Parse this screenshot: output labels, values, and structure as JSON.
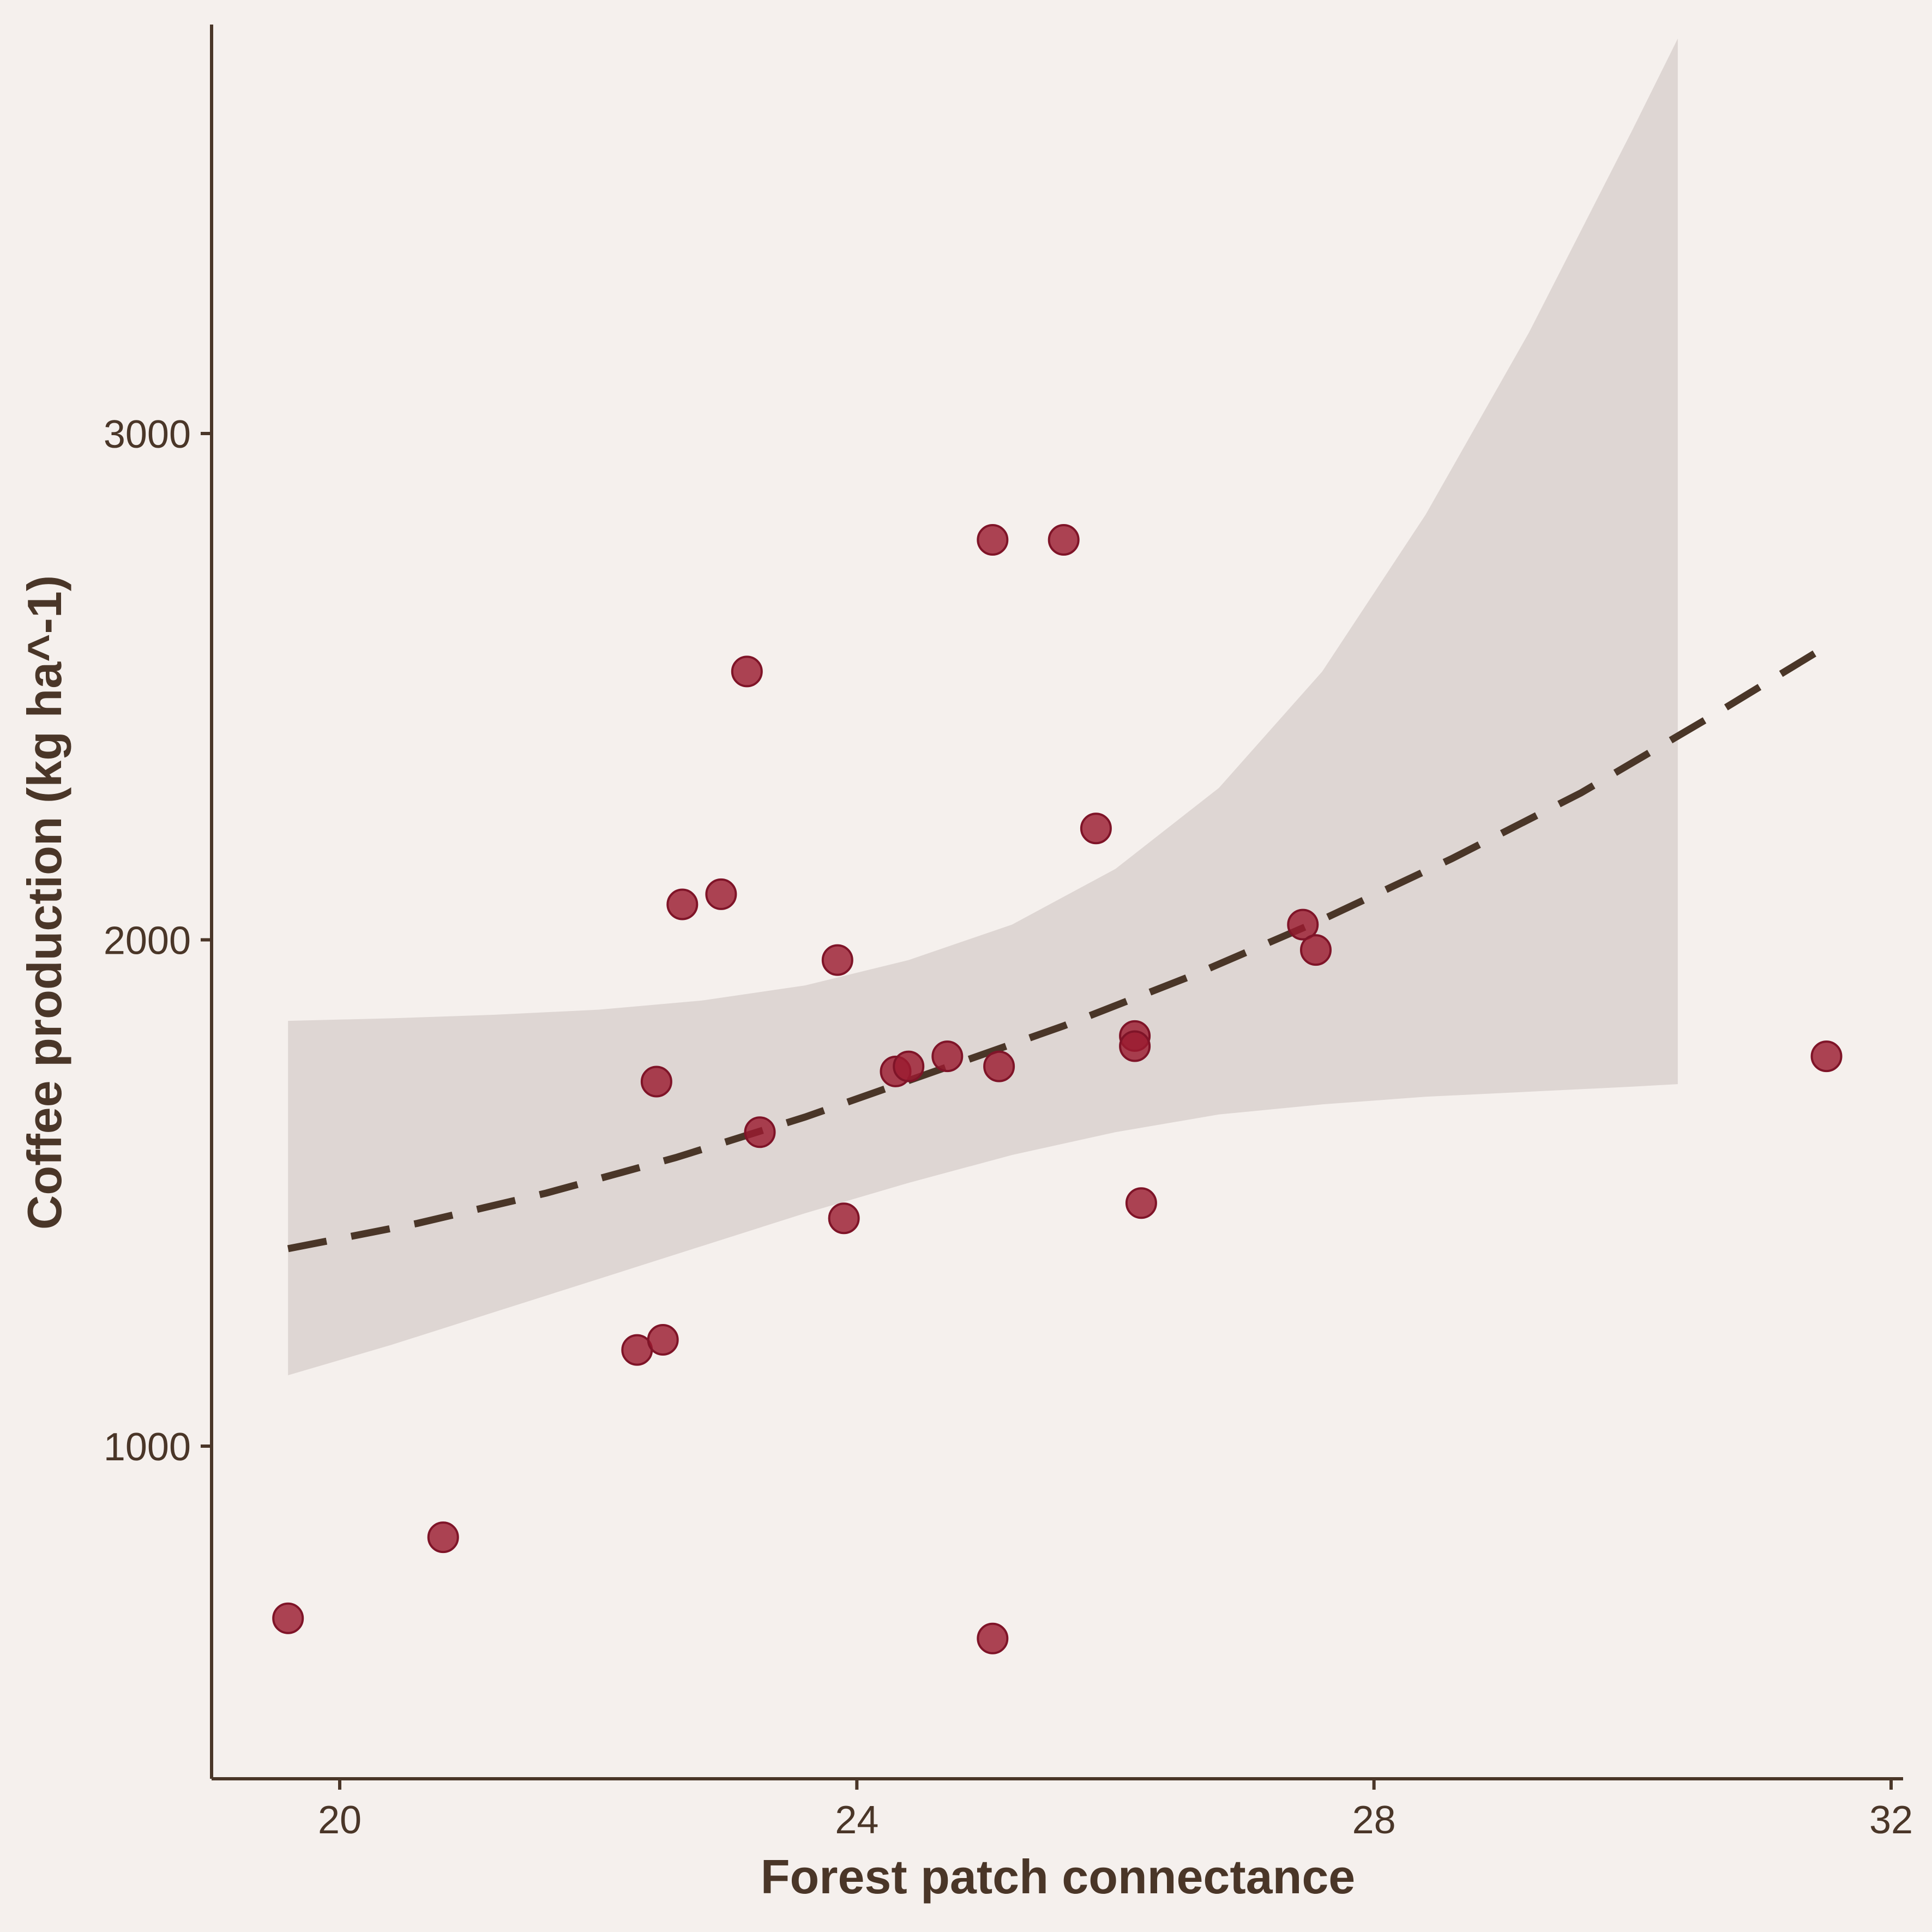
{
  "chart_data": {
    "type": "scatter",
    "title": "",
    "xlabel": "Forest patch connectance",
    "ylabel": "Coffee production (kg ha^-1)",
    "xlim": [
      19.5,
      32.1
    ],
    "ylim": [
      650,
      3800
    ],
    "x_ticks": [
      20,
      24,
      28,
      32
    ],
    "x_tick_labels": [
      "20",
      "24",
      "28",
      "32"
    ],
    "y_ticks": [
      1000,
      2000,
      3000
    ],
    "y_tick_labels": [
      "1000",
      "2000",
      "3000"
    ],
    "grid": false,
    "legend": "none",
    "points": [
      {
        "x": 19.6,
        "y": 660
      },
      {
        "x": 20.8,
        "y": 820
      },
      {
        "x": 22.3,
        "y": 1190
      },
      {
        "x": 22.5,
        "y": 1210
      },
      {
        "x": 22.45,
        "y": 1720
      },
      {
        "x": 22.65,
        "y": 2070
      },
      {
        "x": 22.95,
        "y": 2090
      },
      {
        "x": 23.15,
        "y": 2530
      },
      {
        "x": 23.25,
        "y": 1620
      },
      {
        "x": 23.85,
        "y": 1960
      },
      {
        "x": 23.9,
        "y": 1450
      },
      {
        "x": 24.3,
        "y": 1740
      },
      {
        "x": 24.4,
        "y": 1750
      },
      {
        "x": 24.7,
        "y": 1770
      },
      {
        "x": 25.05,
        "y": 2790
      },
      {
        "x": 25.1,
        "y": 1750
      },
      {
        "x": 25.05,
        "y": 620
      },
      {
        "x": 25.6,
        "y": 2790
      },
      {
        "x": 25.85,
        "y": 2220
      },
      {
        "x": 26.15,
        "y": 1810
      },
      {
        "x": 26.15,
        "y": 1790
      },
      {
        "x": 26.2,
        "y": 1480
      },
      {
        "x": 27.45,
        "y": 2030
      },
      {
        "x": 27.55,
        "y": 1980
      },
      {
        "x": 31.5,
        "y": 1770
      }
    ],
    "trend": {
      "style": "dashed",
      "x": [
        19.6,
        20.6,
        21.6,
        22.6,
        23.6,
        24.6,
        25.6,
        26.6,
        27.6,
        28.6,
        29.6,
        30.6,
        31.5
      ],
      "y": [
        1390,
        1440,
        1500,
        1570,
        1650,
        1740,
        1830,
        1930,
        2040,
        2160,
        2290,
        2440,
        2580
      ]
    },
    "ribbon": {
      "x": [
        19.6,
        20.4,
        21.2,
        22.0,
        22.8,
        23.6,
        24.4,
        25.2,
        26.0,
        26.8,
        27.6,
        28.4,
        29.2,
        30.0,
        30.35
      ],
      "lower": [
        1140,
        1200,
        1265,
        1330,
        1395,
        1460,
        1520,
        1575,
        1620,
        1655,
        1675,
        1690,
        1700,
        1710,
        1715
      ],
      "upper": [
        1840,
        1845,
        1852,
        1862,
        1880,
        1910,
        1960,
        2030,
        2140,
        2300,
        2530,
        2840,
        3200,
        3600,
        3780
      ]
    },
    "colors": {
      "background": "#f5f0ed",
      "axis": "#4a3628",
      "point_fill": "#9b1b30",
      "point_stroke": "#7f1428",
      "trend_line": "#4a3628",
      "ribbon_fill": "#ded6d3"
    }
  }
}
